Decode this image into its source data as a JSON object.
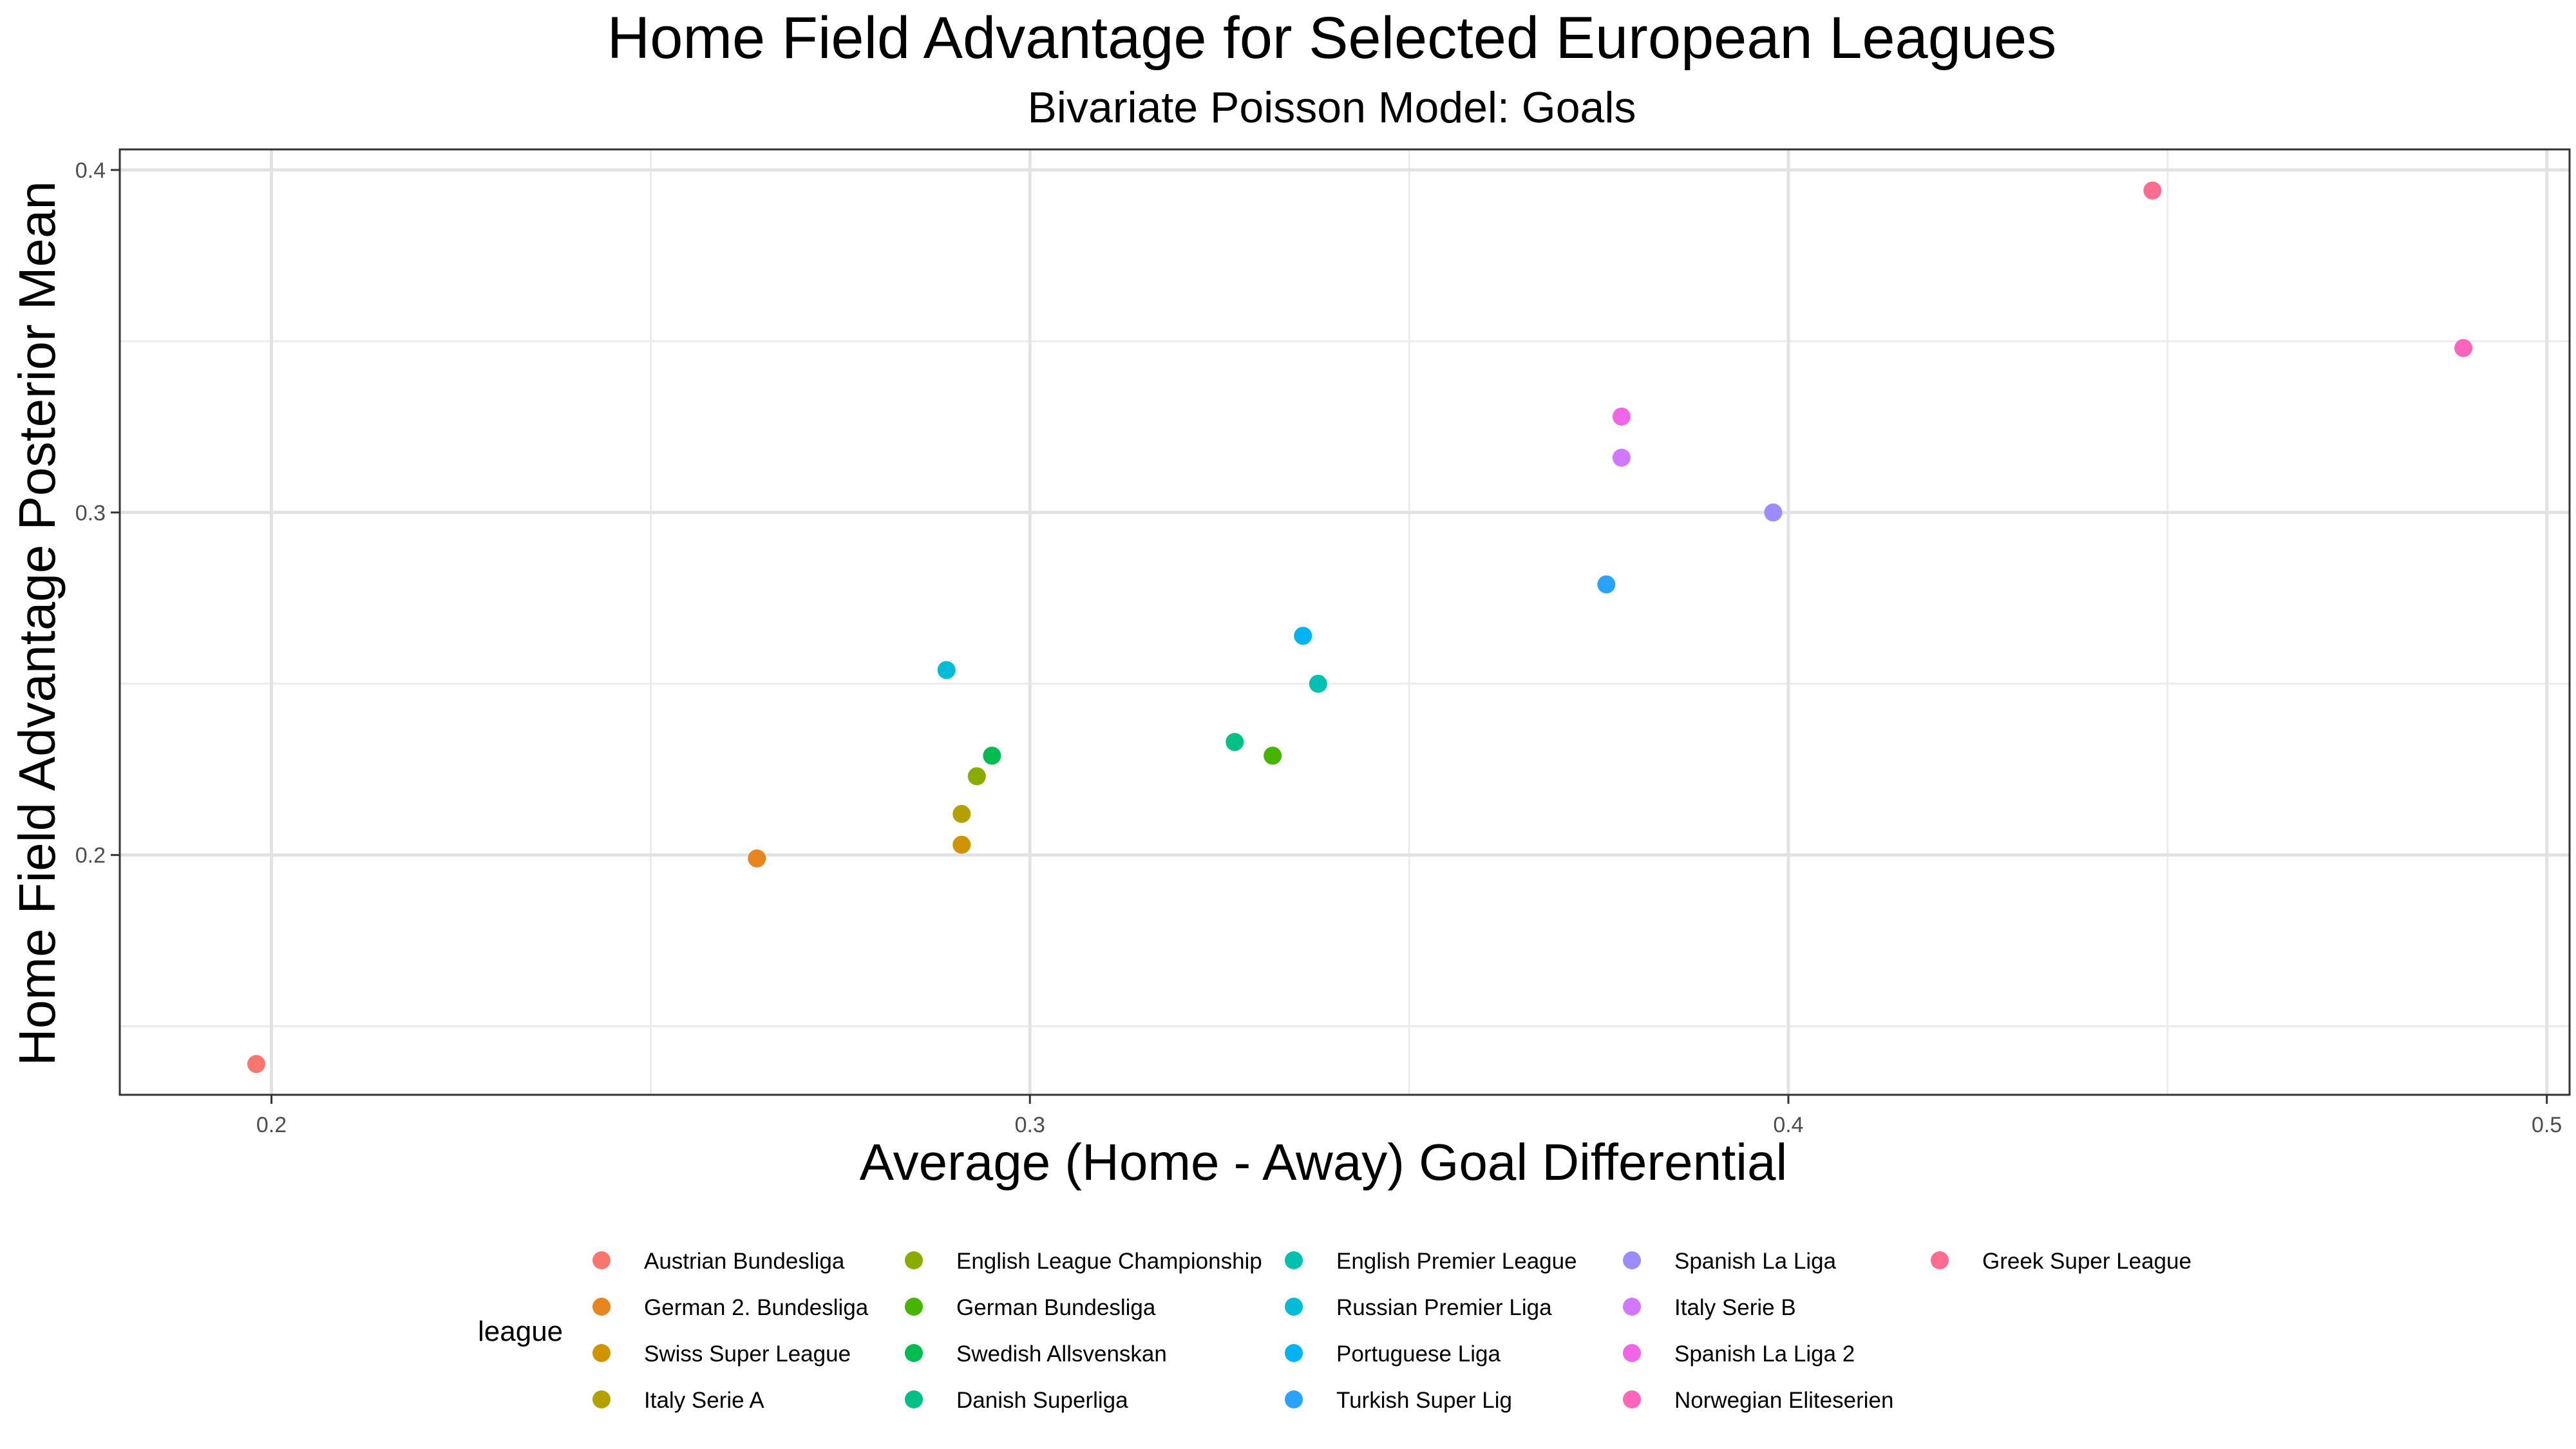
{
  "chart_data": {
    "type": "scatter",
    "title": "Home Field Advantage for Selected European Leagues",
    "subtitle": "Bivariate Poisson Model: Goals",
    "xlabel": "Average (Home - Away) Goal Differential",
    "ylabel": "Home Field Advantage Posterior Mean",
    "xlim": [
      0.18,
      0.503
    ],
    "ylim": [
      0.13,
      0.406
    ],
    "x_ticks": [
      0.2,
      0.3,
      0.4,
      0.5
    ],
    "x_tick_labels": [
      "0.2",
      "0.3",
      "0.4",
      "0.5"
    ],
    "x_minor": [
      0.25,
      0.35,
      0.45
    ],
    "y_ticks": [
      0.2,
      0.3,
      0.4
    ],
    "y_tick_labels": [
      "0.2",
      "0.3",
      "0.4"
    ],
    "y_minor": [
      0.15,
      0.25,
      0.35
    ],
    "grid": true,
    "legend_title": "league",
    "legend_position": "bottom",
    "series": [
      {
        "name": "Austrian Bundesliga",
        "color": "#F8766D",
        "x": 0.198,
        "y": 0.139
      },
      {
        "name": "German 2. Bundesliga",
        "color": "#E7851E",
        "x": 0.264,
        "y": 0.199
      },
      {
        "name": "Swiss Super League",
        "color": "#D09400",
        "x": 0.291,
        "y": 0.203
      },
      {
        "name": "Italy Serie A",
        "color": "#B2A100",
        "x": 0.291,
        "y": 0.212
      },
      {
        "name": "English League Championship",
        "color": "#89AC00",
        "x": 0.293,
        "y": 0.223
      },
      {
        "name": "German Bundesliga",
        "color": "#45B500",
        "x": 0.332,
        "y": 0.229
      },
      {
        "name": "Swedish Allsvenskan",
        "color": "#00BC51",
        "x": 0.295,
        "y": 0.229
      },
      {
        "name": "Danish Superliga",
        "color": "#00C087",
        "x": 0.327,
        "y": 0.233
      },
      {
        "name": "English Premier League",
        "color": "#00C0B2",
        "x": 0.338,
        "y": 0.25
      },
      {
        "name": "Russian Premier Liga",
        "color": "#00BCD6",
        "x": 0.289,
        "y": 0.254
      },
      {
        "name": "Portuguese Liga",
        "color": "#00B3F2",
        "x": 0.336,
        "y": 0.264
      },
      {
        "name": "Turkish Super Lig",
        "color": "#29A3FF",
        "x": 0.376,
        "y": 0.279
      },
      {
        "name": "Spanish La Liga",
        "color": "#9C8DFF",
        "x": 0.398,
        "y": 0.3
      },
      {
        "name": "Italy Serie B",
        "color": "#D277FF",
        "x": 0.378,
        "y": 0.316
      },
      {
        "name": "Spanish La Liga 2",
        "color": "#F166E8",
        "x": 0.378,
        "y": 0.328
      },
      {
        "name": "Norwegian Eliteserien",
        "color": "#FF65BA",
        "x": 0.489,
        "y": 0.348
      },
      {
        "name": "Greek Super League",
        "color": "#FF6C91",
        "x": 0.448,
        "y": 0.394
      }
    ]
  }
}
